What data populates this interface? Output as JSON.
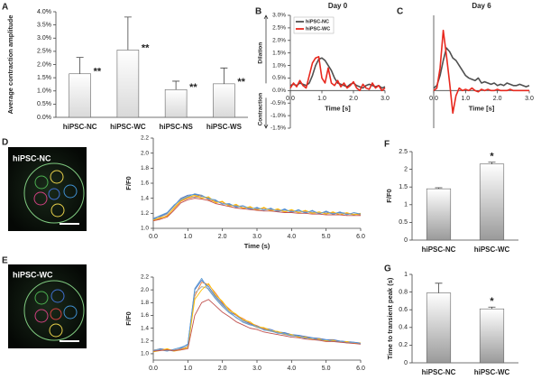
{
  "chart_data": [
    {
      "panel": "A",
      "type": "bar",
      "ylabel": "Average contraction amplitude",
      "categories": [
        "hiPSC-NC",
        "hiPSC-WC",
        "hiPSC-NS",
        "hiPSC-WS"
      ],
      "values": [
        1.65,
        2.55,
        1.05,
        1.27
      ],
      "errors": [
        0.62,
        1.25,
        0.32,
        0.6
      ],
      "color": "#d9d9d9",
      "annotations": [
        {
          "at": "hiPSC-NC",
          "text": "**"
        },
        {
          "at": "hiPSC-WC",
          "text": "**"
        },
        {
          "at": "hiPSC-NS",
          "text": "**"
        },
        {
          "at": "hiPSC-WS",
          "text": "**"
        }
      ],
      "ylim": [
        0,
        4
      ],
      "yticks": [
        {
          "value": 0,
          "label": "0.0%"
        },
        {
          "value": 0.5,
          "label": "0.5%"
        },
        {
          "value": 1,
          "label": "1.0%"
        },
        {
          "value": 1.5,
          "label": "1.5%"
        },
        {
          "value": 2,
          "label": "2.0%"
        },
        {
          "value": 2.5,
          "label": "2.5%"
        },
        {
          "value": 3,
          "label": "3.0%"
        },
        {
          "value": 3.5,
          "label": "3.5%"
        },
        {
          "value": 4,
          "label": "4.0%"
        }
      ]
    },
    {
      "panel": "B",
      "type": "line",
      "title": "Day 0",
      "xlabel": "Time [s]",
      "ylabel_top": "Dilation",
      "ylabel_bottom": "Contraction",
      "legend": "upper left",
      "x": [
        0,
        0.1,
        0.2,
        0.3,
        0.4,
        0.5,
        0.6,
        0.7,
        0.8,
        0.9,
        1,
        1.1,
        1.2,
        1.3,
        1.4,
        1.5,
        1.6,
        1.7,
        1.8,
        1.9,
        2,
        2.1,
        2.2,
        2.3,
        2.4,
        2.5,
        2.6,
        2.7,
        2.8,
        2.9,
        3
      ],
      "series": [
        {
          "name": "hiPSC-NC",
          "color": "#505050",
          "values": [
            0.2,
            0.25,
            0.2,
            0.3,
            0.25,
            0.2,
            0.3,
            0.6,
            1.0,
            1.25,
            1.3,
            1.2,
            1.0,
            0.8,
            0.5,
            0.3,
            0.25,
            0.2,
            0.15,
            0.25,
            0.3,
            0.2,
            0.15,
            0.1,
            0.2,
            0.25,
            0.2,
            0.15,
            0.2,
            0.1,
            0.15
          ]
        },
        {
          "name": "hiPSC-WC",
          "color": "#e8281e",
          "values": [
            0.1,
            0.3,
            0.15,
            0.4,
            0.2,
            0.1,
            0.6,
            1.1,
            1.3,
            1.35,
            0.5,
            0.3,
            0.9,
            0.3,
            0.2,
            0.4,
            0.15,
            0.3,
            0.1,
            0.2,
            0.35,
            0.1,
            0.0,
            0.25,
            0.1,
            0.05,
            0.3,
            0.1,
            0.2,
            0.0,
            0.1
          ]
        }
      ],
      "xlim": [
        0,
        3
      ],
      "xticks": [
        {
          "value": 0,
          "label": "0.0"
        },
        {
          "value": 1,
          "label": "1.0"
        },
        {
          "value": 2,
          "label": "2.0"
        },
        {
          "value": 3,
          "label": "3.0"
        }
      ],
      "ylim": [
        -1.5,
        3
      ],
      "yticks": [
        {
          "value": -1.5,
          "label": "-1.5%"
        },
        {
          "value": -1,
          "label": "-1.0%"
        },
        {
          "value": -0.5,
          "label": "-0.5%"
        },
        {
          "value": 0,
          "label": "0.0%"
        },
        {
          "value": 0.5,
          "label": "0.5%"
        },
        {
          "value": 1,
          "label": "1.0%"
        },
        {
          "value": 1.5,
          "label": "1.5%"
        },
        {
          "value": 2,
          "label": "2.0%"
        },
        {
          "value": 2.5,
          "label": "2.5%"
        },
        {
          "value": 3,
          "label": "3.0%"
        }
      ]
    },
    {
      "panel": "C",
      "type": "line",
      "title": "Day 6",
      "xlabel": "Time [s]",
      "x": [
        0,
        0.1,
        0.2,
        0.3,
        0.4,
        0.5,
        0.6,
        0.7,
        0.8,
        0.9,
        1,
        1.1,
        1.2,
        1.3,
        1.4,
        1.5,
        1.6,
        1.7,
        1.8,
        1.9,
        2,
        2.1,
        2.2,
        2.3,
        2.4,
        2.5,
        2.6,
        2.7,
        2.8,
        2.9,
        3
      ],
      "series": [
        {
          "color": "#505050",
          "values": [
            0.1,
            0.2,
            0.6,
            1.2,
            1.7,
            1.55,
            1.3,
            1.2,
            1.0,
            0.8,
            0.6,
            0.5,
            0.45,
            0.4,
            0.5,
            0.3,
            0.35,
            0.3,
            0.25,
            0.3,
            0.2,
            0.25,
            0.2,
            0.3,
            0.25,
            0.2,
            0.2,
            0.25,
            0.2,
            0.15,
            0.2
          ]
        },
        {
          "color": "#e8281e",
          "values": [
            0.0,
            0.1,
            0.9,
            2.4,
            1.4,
            0.3,
            -0.9,
            -0.2,
            0.1,
            0.0,
            0.05,
            0.0,
            0.1,
            0.0,
            -0.05,
            0.05,
            0.0,
            0.05,
            0.0,
            0.0,
            0.05,
            0.0,
            0.0,
            0.0,
            0.05,
            0.0,
            0.0,
            0.0,
            0.0,
            0.0,
            0.0
          ]
        }
      ],
      "xlim": [
        0,
        3
      ],
      "xticks": [
        {
          "value": 0,
          "label": "0.0"
        },
        {
          "value": 1,
          "label": "1.0"
        },
        {
          "value": 2,
          "label": "2.0"
        },
        {
          "value": 3,
          "label": "3.0"
        }
      ],
      "ylim": [
        -1.5,
        3
      ]
    },
    {
      "type": "line",
      "ylabel": "F/F0",
      "xlabel": "Time (s)",
      "x": [
        0,
        0.2,
        0.4,
        0.6,
        0.8,
        1,
        1.2,
        1.4,
        1.6,
        1.8,
        2,
        2.2,
        2.4,
        2.6,
        2.8,
        3,
        3.2,
        3.4,
        3.6,
        3.8,
        4,
        4.2,
        4.4,
        4.6,
        4.8,
        5,
        5.2,
        5.4,
        5.6,
        5.8,
        6
      ],
      "series": [
        {
          "color": "#4472c4",
          "values": [
            1.12,
            1.16,
            1.2,
            1.3,
            1.4,
            1.44,
            1.45,
            1.43,
            1.4,
            1.37,
            1.33,
            1.32,
            1.29,
            1.3,
            1.26,
            1.27,
            1.25,
            1.26,
            1.23,
            1.25,
            1.22,
            1.24,
            1.21,
            1.23,
            1.2,
            1.22,
            1.19,
            1.21,
            1.2,
            1.18,
            1.2
          ]
        },
        {
          "color": "#ed7d31",
          "values": [
            1.1,
            1.13,
            1.17,
            1.26,
            1.36,
            1.4,
            1.42,
            1.44,
            1.38,
            1.35,
            1.35,
            1.3,
            1.31,
            1.27,
            1.28,
            1.25,
            1.27,
            1.24,
            1.25,
            1.22,
            1.24,
            1.21,
            1.23,
            1.2,
            1.21,
            1.2,
            1.21,
            1.18,
            1.2,
            1.19,
            1.18
          ]
        },
        {
          "color": "#a5a5a5",
          "values": [
            1.14,
            1.15,
            1.19,
            1.29,
            1.39,
            1.43,
            1.41,
            1.42,
            1.41,
            1.36,
            1.33,
            1.31,
            1.3,
            1.29,
            1.27,
            1.26,
            1.25,
            1.25,
            1.24,
            1.23,
            1.23,
            1.22,
            1.22,
            1.21,
            1.21,
            1.2,
            1.2,
            1.2,
            1.19,
            1.19,
            1.19
          ]
        },
        {
          "color": "#ffc000",
          "values": [
            1.11,
            1.14,
            1.16,
            1.27,
            1.37,
            1.41,
            1.44,
            1.4,
            1.42,
            1.34,
            1.36,
            1.29,
            1.32,
            1.26,
            1.29,
            1.24,
            1.28,
            1.23,
            1.26,
            1.22,
            1.25,
            1.21,
            1.24,
            1.2,
            1.22,
            1.19,
            1.22,
            1.18,
            1.21,
            1.18,
            1.2
          ]
        },
        {
          "color": "#5b9bd5",
          "values": [
            1.13,
            1.17,
            1.21,
            1.31,
            1.38,
            1.42,
            1.46,
            1.44,
            1.39,
            1.38,
            1.32,
            1.33,
            1.28,
            1.3,
            1.25,
            1.28,
            1.24,
            1.27,
            1.22,
            1.26,
            1.21,
            1.25,
            1.2,
            1.24,
            1.19,
            1.23,
            1.19,
            1.22,
            1.18,
            1.21,
            1.19
          ]
        },
        {
          "color": "#c0504d",
          "values": [
            1.1,
            1.12,
            1.15,
            1.24,
            1.34,
            1.38,
            1.4,
            1.39,
            1.37,
            1.33,
            1.31,
            1.29,
            1.27,
            1.26,
            1.25,
            1.24,
            1.23,
            1.23,
            1.22,
            1.21,
            1.21,
            1.2,
            1.2,
            1.19,
            1.19,
            1.18,
            1.18,
            1.18,
            1.17,
            1.17,
            1.17
          ]
        }
      ],
      "xlim": [
        0,
        6
      ],
      "xticks": [
        {
          "value": 0,
          "label": "0.0"
        },
        {
          "value": 1,
          "label": "1.0"
        },
        {
          "value": 2,
          "label": "2.0"
        },
        {
          "value": 3,
          "label": "3.0"
        },
        {
          "value": 4,
          "label": "4.0"
        },
        {
          "value": 5,
          "label": "5.0"
        },
        {
          "value": 6,
          "label": "6.0"
        }
      ],
      "ylim": [
        1,
        2.2
      ],
      "yticks": [
        {
          "value": 1,
          "label": "1.0"
        },
        1.2,
        1.4,
        1.6,
        1.8,
        {
          "value": 2,
          "label": "2.0"
        },
        2.2
      ]
    },
    {
      "type": "line",
      "ylabel": "F/F0",
      "x": [
        0,
        0.2,
        0.4,
        0.6,
        0.8,
        1,
        1.2,
        1.4,
        1.6,
        1.8,
        2,
        2.2,
        2.4,
        2.6,
        2.8,
        3,
        3.2,
        3.4,
        3.6,
        3.8,
        4,
        4.2,
        4.4,
        4.6,
        4.8,
        5,
        5.2,
        5.4,
        5.6,
        5.8,
        6
      ],
      "series": [
        {
          "color": "#4472c4",
          "values": [
            1.05,
            1.08,
            1.06,
            1.04,
            1.09,
            1.15,
            2.0,
            2.15,
            2.05,
            1.9,
            1.78,
            1.66,
            1.6,
            1.52,
            1.47,
            1.43,
            1.4,
            1.38,
            1.34,
            1.33,
            1.3,
            1.29,
            1.27,
            1.25,
            1.24,
            1.22,
            1.22,
            1.2,
            1.19,
            1.18,
            1.17
          ]
        },
        {
          "color": "#ed7d31",
          "values": [
            1.04,
            1.06,
            1.07,
            1.05,
            1.07,
            1.1,
            1.9,
            2.12,
            2.08,
            1.95,
            1.8,
            1.7,
            1.6,
            1.55,
            1.48,
            1.44,
            1.39,
            1.36,
            1.33,
            1.31,
            1.29,
            1.27,
            1.26,
            1.24,
            1.23,
            1.21,
            1.21,
            1.19,
            1.18,
            1.17,
            1.16
          ]
        },
        {
          "color": "#a5a5a5",
          "values": [
            1.06,
            1.07,
            1.05,
            1.06,
            1.08,
            1.12,
            1.95,
            2.05,
            2.02,
            1.88,
            1.76,
            1.66,
            1.56,
            1.5,
            1.46,
            1.41,
            1.38,
            1.35,
            1.33,
            1.3,
            1.28,
            1.27,
            1.25,
            1.24,
            1.22,
            1.21,
            1.2,
            1.19,
            1.18,
            1.17,
            1.16
          ]
        },
        {
          "color": "#ffc000",
          "values": [
            1.03,
            1.05,
            1.08,
            1.04,
            1.06,
            1.1,
            1.85,
            2.0,
            2.1,
            1.92,
            1.82,
            1.68,
            1.62,
            1.53,
            1.5,
            1.42,
            1.41,
            1.36,
            1.35,
            1.31,
            1.3,
            1.26,
            1.26,
            1.22,
            1.23,
            1.2,
            1.21,
            1.18,
            1.19,
            1.16,
            1.17
          ]
        },
        {
          "color": "#5b9bd5",
          "values": [
            1.05,
            1.06,
            1.04,
            1.07,
            1.1,
            1.14,
            2.02,
            2.18,
            2.0,
            1.86,
            1.74,
            1.64,
            1.57,
            1.49,
            1.45,
            1.43,
            1.37,
            1.36,
            1.32,
            1.32,
            1.28,
            1.28,
            1.24,
            1.25,
            1.21,
            1.22,
            1.19,
            1.2,
            1.17,
            1.18,
            1.16
          ]
        },
        {
          "color": "#c0504d",
          "values": [
            1.04,
            1.05,
            1.06,
            1.05,
            1.06,
            1.08,
            1.6,
            1.8,
            1.85,
            1.75,
            1.65,
            1.58,
            1.5,
            1.45,
            1.4,
            1.38,
            1.34,
            1.32,
            1.3,
            1.28,
            1.26,
            1.25,
            1.23,
            1.22,
            1.21,
            1.19,
            1.19,
            1.18,
            1.17,
            1.16,
            1.15
          ]
        }
      ],
      "xlim": [
        0,
        6
      ],
      "xticks": [
        {
          "value": 0,
          "label": "0.0"
        },
        {
          "value": 1,
          "label": "1.0"
        },
        {
          "value": 2,
          "label": "2.0"
        },
        {
          "value": 3,
          "label": "3.0"
        },
        {
          "value": 4,
          "label": "4.0"
        },
        {
          "value": 5,
          "label": "5.0"
        },
        {
          "value": 6,
          "label": "6.0"
        }
      ],
      "ylim": [
        0.9,
        2.2
      ],
      "yticks": [
        {
          "value": 1,
          "label": "1.0"
        },
        1.2,
        1.4,
        1.6,
        1.8,
        {
          "value": 2,
          "label": "2.0"
        },
        2.2
      ]
    },
    {
      "panel": "F",
      "type": "bar",
      "ylabel": "F/F0",
      "categories": [
        "hiPSC-NC",
        "hiPSC-WC"
      ],
      "values": [
        1.45,
        2.15
      ],
      "errors": [
        0.03,
        0.05
      ],
      "color": "#9a9a9a",
      "annotations": [
        {
          "at": "hiPSC-WC",
          "text": "*"
        }
      ],
      "ylim": [
        0,
        2.5
      ],
      "yticks": [
        0,
        0.5,
        1,
        1.5,
        2,
        2.5
      ]
    },
    {
      "panel": "G",
      "type": "bar",
      "ylabel": "Time to transient peak (s)",
      "categories": [
        "hiPSC-NC",
        "hiPSC-WC"
      ],
      "values": [
        0.79,
        0.61
      ],
      "errors": [
        0.11,
        0.02
      ],
      "color": "#9a9a9a",
      "annotations": [
        {
          "at": "hiPSC-WC",
          "text": "*"
        }
      ],
      "ylim": [
        0,
        1
      ],
      "yticks": [
        0,
        0.2,
        0.4,
        0.6,
        0.8,
        1
      ]
    }
  ],
  "images": [
    {
      "panel": "D",
      "label": "hiPSC-NC"
    },
    {
      "panel": "E",
      "label": "hiPSC-WC"
    }
  ]
}
